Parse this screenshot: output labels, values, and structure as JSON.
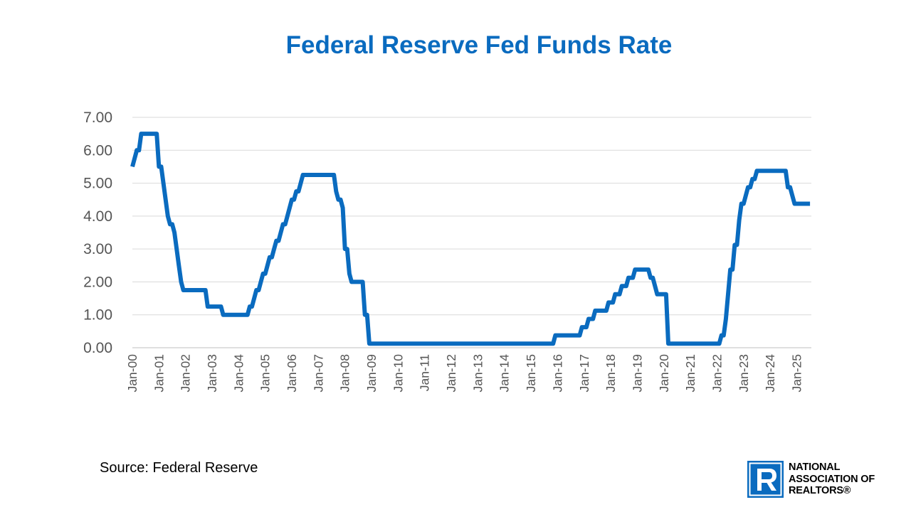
{
  "chart_data": {
    "type": "line",
    "title": "Federal Reserve Fed Funds Rate",
    "xlabel": "",
    "ylabel": "",
    "ylim": [
      0,
      7
    ],
    "y_ticks": [
      "0.00",
      "1.00",
      "2.00",
      "3.00",
      "4.00",
      "5.00",
      "6.00",
      "7.00"
    ],
    "x_ticks": [
      "Jan-00",
      "Jan-01",
      "Jan-02",
      "Jan-03",
      "Jan-04",
      "Jan-05",
      "Jan-06",
      "Jan-07",
      "Jan-08",
      "Jan-09",
      "Jan-10",
      "Jan-11",
      "Jan-12",
      "Jan-13",
      "Jan-14",
      "Jan-15",
      "Jan-16",
      "Jan-17",
      "Jan-18",
      "Jan-19",
      "Jan-20",
      "Jan-21",
      "Jan-22",
      "Jan-23",
      "Jan-24",
      "Jan-25"
    ],
    "grid": true,
    "legend": "none",
    "line_color": "#0a6bbf",
    "series": [
      {
        "values": [
          [
            "2000-01",
            5.5
          ],
          [
            "2000-02",
            5.75
          ],
          [
            "2000-03",
            6.0
          ],
          [
            "2000-04",
            6.0
          ],
          [
            "2000-05",
            6.5
          ],
          [
            "2000-08",
            6.5
          ],
          [
            "2000-12",
            6.5
          ],
          [
            "2001-01",
            5.5
          ],
          [
            "2001-02",
            5.5
          ],
          [
            "2001-03",
            5.0
          ],
          [
            "2001-04",
            4.5
          ],
          [
            "2001-05",
            4.0
          ],
          [
            "2001-06",
            3.75
          ],
          [
            "2001-07",
            3.75
          ],
          [
            "2001-08",
            3.5
          ],
          [
            "2001-09",
            3.0
          ],
          [
            "2001-10",
            2.5
          ],
          [
            "2001-11",
            2.0
          ],
          [
            "2001-12",
            1.75
          ],
          [
            "2002-10",
            1.75
          ],
          [
            "2002-11",
            1.25
          ],
          [
            "2003-05",
            1.25
          ],
          [
            "2003-06",
            1.0
          ],
          [
            "2004-05",
            1.0
          ],
          [
            "2004-06",
            1.25
          ],
          [
            "2004-07",
            1.25
          ],
          [
            "2004-08",
            1.5
          ],
          [
            "2004-09",
            1.75
          ],
          [
            "2004-10",
            1.75
          ],
          [
            "2004-11",
            2.0
          ],
          [
            "2004-12",
            2.25
          ],
          [
            "2005-01",
            2.25
          ],
          [
            "2005-02",
            2.5
          ],
          [
            "2005-03",
            2.75
          ],
          [
            "2005-04",
            2.75
          ],
          [
            "2005-05",
            3.0
          ],
          [
            "2005-06",
            3.25
          ],
          [
            "2005-07",
            3.25
          ],
          [
            "2005-08",
            3.5
          ],
          [
            "2005-09",
            3.75
          ],
          [
            "2005-10",
            3.75
          ],
          [
            "2005-11",
            4.0
          ],
          [
            "2005-12",
            4.25
          ],
          [
            "2006-01",
            4.5
          ],
          [
            "2006-02",
            4.5
          ],
          [
            "2006-03",
            4.75
          ],
          [
            "2006-04",
            4.75
          ],
          [
            "2006-05",
            5.0
          ],
          [
            "2006-06",
            5.25
          ],
          [
            "2007-08",
            5.25
          ],
          [
            "2007-09",
            4.75
          ],
          [
            "2007-10",
            4.5
          ],
          [
            "2007-11",
            4.5
          ],
          [
            "2007-12",
            4.25
          ],
          [
            "2008-01",
            3.0
          ],
          [
            "2008-02",
            3.0
          ],
          [
            "2008-03",
            2.25
          ],
          [
            "2008-04",
            2.0
          ],
          [
            "2008-09",
            2.0
          ],
          [
            "2008-10",
            1.0
          ],
          [
            "2008-11",
            1.0
          ],
          [
            "2008-12",
            0.125
          ],
          [
            "2015-11",
            0.125
          ],
          [
            "2015-12",
            0.375
          ],
          [
            "2016-11",
            0.375
          ],
          [
            "2016-12",
            0.625
          ],
          [
            "2017-02",
            0.625
          ],
          [
            "2017-03",
            0.875
          ],
          [
            "2017-05",
            0.875
          ],
          [
            "2017-06",
            1.125
          ],
          [
            "2017-11",
            1.125
          ],
          [
            "2017-12",
            1.375
          ],
          [
            "2018-02",
            1.375
          ],
          [
            "2018-03",
            1.625
          ],
          [
            "2018-05",
            1.625
          ],
          [
            "2018-06",
            1.875
          ],
          [
            "2018-08",
            1.875
          ],
          [
            "2018-09",
            2.125
          ],
          [
            "2018-11",
            2.125
          ],
          [
            "2018-12",
            2.375
          ],
          [
            "2019-06",
            2.375
          ],
          [
            "2019-07",
            2.125
          ],
          [
            "2019-08",
            2.125
          ],
          [
            "2019-09",
            1.875
          ],
          [
            "2019-10",
            1.625
          ],
          [
            "2020-02",
            1.625
          ],
          [
            "2020-03",
            0.125
          ],
          [
            "2022-02",
            0.125
          ],
          [
            "2022-03",
            0.375
          ],
          [
            "2022-04",
            0.375
          ],
          [
            "2022-05",
            0.875
          ],
          [
            "2022-06",
            1.625
          ],
          [
            "2022-07",
            2.375
          ],
          [
            "2022-08",
            2.375
          ],
          [
            "2022-09",
            3.125
          ],
          [
            "2022-10",
            3.125
          ],
          [
            "2022-11",
            3.875
          ],
          [
            "2022-12",
            4.375
          ],
          [
            "2023-01",
            4.375
          ],
          [
            "2023-02",
            4.625
          ],
          [
            "2023-03",
            4.875
          ],
          [
            "2023-04",
            4.875
          ],
          [
            "2023-05",
            5.125
          ],
          [
            "2023-06",
            5.125
          ],
          [
            "2023-07",
            5.375
          ],
          [
            "2024-08",
            5.375
          ],
          [
            "2024-09",
            4.875
          ],
          [
            "2024-10",
            4.875
          ],
          [
            "2024-11",
            4.625
          ],
          [
            "2024-12",
            4.375
          ],
          [
            "2025-07",
            4.375
          ]
        ]
      }
    ]
  },
  "footer": {
    "source": "Source: Federal Reserve"
  },
  "logo": {
    "line1": "NATIONAL",
    "line2": "ASSOCIATION OF",
    "line3": "REALTORS®",
    "mark_letter": "R",
    "mark_color": "#0a6bbf"
  }
}
